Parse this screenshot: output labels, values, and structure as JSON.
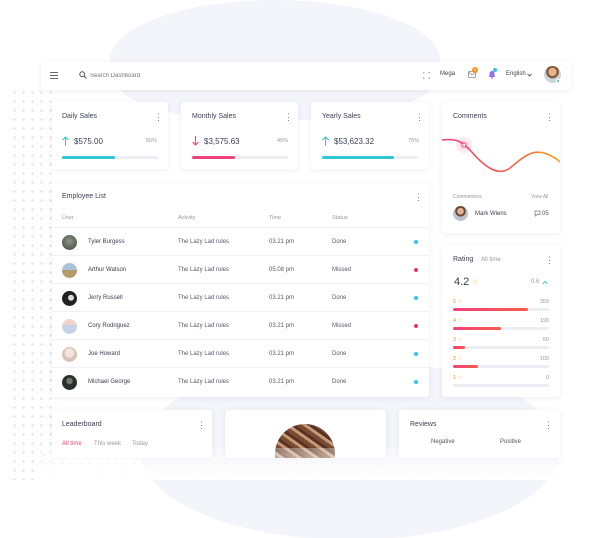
{
  "topbar": {
    "search_placeholder": "Search Dashboard",
    "mega_label": "Mega",
    "language_label": "English",
    "notification_count": "2"
  },
  "stats": [
    {
      "title": "Daily Sales",
      "amount": "$575.00",
      "percent": "55%",
      "progress": 0.55,
      "trend": "up",
      "color": "#2fc7d6"
    },
    {
      "title": "Monthly Sales",
      "amount": "$3,575.63",
      "percent": "45%",
      "progress": 0.45,
      "trend": "down",
      "color": "#f0437d"
    },
    {
      "title": "Yearly Sales",
      "amount": "$53,623.32",
      "percent": "75%",
      "progress": 0.75,
      "trend": "up",
      "color": "#2fc7d6"
    }
  ],
  "comments": {
    "title": "Comments",
    "commentors_label": "Commentors",
    "view_all_label": "View All",
    "user_name": "Mark Wiens",
    "count": "05"
  },
  "employee_list": {
    "title": "Employee List",
    "columns": [
      "User",
      "Activity",
      "Time",
      "Status"
    ],
    "rows": [
      {
        "name": "Tyler Burgess",
        "activity": "The Lazy Lad rules",
        "time": "03.21 pm",
        "status": "Done",
        "status_color": "#2fc7f0"
      },
      {
        "name": "Arthur Watson",
        "activity": "The Lazy Lad rules",
        "time": "05.08 pm",
        "status": "Missed",
        "status_color": "#f0365f"
      },
      {
        "name": "Jerry Russell",
        "activity": "The Lazy Lad rules",
        "time": "03.21 pm",
        "status": "Done",
        "status_color": "#2fc7f0"
      },
      {
        "name": "Cory Rodriguez",
        "activity": "The Lazy Lad rules",
        "time": "03.21 pm",
        "status": "Missed",
        "status_color": "#f0365f"
      },
      {
        "name": "Joe Howard",
        "activity": "The Lazy Lad rules",
        "time": "03.21 pm",
        "status": "Done",
        "status_color": "#2fc7f0"
      },
      {
        "name": "Michael George",
        "activity": "The Lazy Lad rules",
        "time": "03.21 pm",
        "status": "Done",
        "status_color": "#2fc7f0"
      }
    ]
  },
  "rating": {
    "title": "Rating",
    "period": "All time",
    "score": "4.2",
    "change": "0.6",
    "rows": [
      {
        "stars": "5",
        "count": "359",
        "progress": 0.78
      },
      {
        "stars": "4",
        "count": "190",
        "progress": 0.5
      },
      {
        "stars": "3",
        "count": "50",
        "progress": 0.13
      },
      {
        "stars": "2",
        "count": "100",
        "progress": 0.26
      },
      {
        "stars": "1",
        "count": "0",
        "progress": 0.0
      }
    ]
  },
  "leaderboard": {
    "title": "Leaderboard",
    "tabs": [
      "All time",
      "This week",
      "Today"
    ]
  },
  "reviews": {
    "title": "Reviews",
    "columns": [
      "Negative",
      "Positive"
    ]
  },
  "colors": {
    "accent_pink": "#f0437d",
    "accent_cyan": "#2fc7d6",
    "accent_orange": "#f7a21b",
    "star": "#f7b924"
  }
}
